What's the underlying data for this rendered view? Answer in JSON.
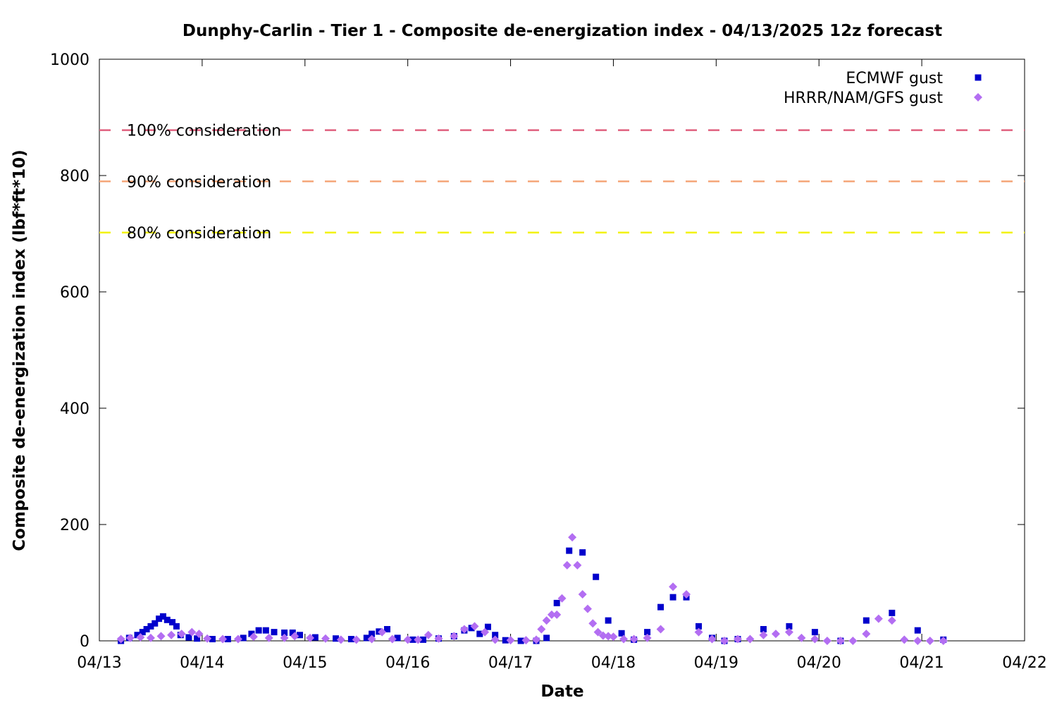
{
  "chart_data": {
    "type": "scatter",
    "title": "Dunphy-Carlin - Tier 1 - Composite de-energization index - 04/13/2025 12z forecast",
    "xlabel": "Date",
    "ylabel": "Composite de-energization index (lbf*ft*10)",
    "xlim": [
      0,
      9
    ],
    "xticks": [
      {
        "value": 0,
        "label": "04/13"
      },
      {
        "value": 1,
        "label": "04/14"
      },
      {
        "value": 2,
        "label": "04/15"
      },
      {
        "value": 3,
        "label": "04/16"
      },
      {
        "value": 4,
        "label": "04/17"
      },
      {
        "value": 5,
        "label": "04/18"
      },
      {
        "value": 6,
        "label": "04/19"
      },
      {
        "value": 7,
        "label": "04/20"
      },
      {
        "value": 8,
        "label": "04/21"
      },
      {
        "value": 9,
        "label": "04/22"
      }
    ],
    "ylim": [
      0,
      1000
    ],
    "yticks": [
      0,
      200,
      400,
      600,
      800,
      1000
    ],
    "legend": "upper right",
    "thresholds": [
      {
        "label": "100% consideration",
        "value": 878,
        "color": "#e0607e"
      },
      {
        "label": "90% consideration",
        "value": 790,
        "color": "#f5a77a"
      },
      {
        "label": "80% consideration",
        "value": 702,
        "color": "#f2f200"
      }
    ],
    "series": [
      {
        "name": "ECMWF gust",
        "color": "#0000cc",
        "marker": "square",
        "x": [
          0.21,
          0.29,
          0.37,
          0.42,
          0.46,
          0.5,
          0.54,
          0.58,
          0.62,
          0.66,
          0.71,
          0.75,
          0.79,
          0.87,
          0.95,
          1.1,
          1.25,
          1.4,
          1.48,
          1.55,
          1.62,
          1.7,
          1.8,
          1.88,
          1.95,
          2.1,
          2.3,
          2.45,
          2.6,
          2.65,
          2.72,
          2.8,
          2.9,
          3.05,
          3.15,
          3.3,
          3.45,
          3.55,
          3.62,
          3.7,
          3.78,
          3.85,
          3.95,
          4.1,
          4.25,
          4.35,
          4.45,
          4.57,
          4.7,
          4.83,
          4.95,
          5.08,
          5.2,
          5.33,
          5.46,
          5.58,
          5.71,
          5.83,
          5.96,
          6.08,
          6.21,
          6.46,
          6.71,
          6.96,
          7.21,
          7.46,
          7.71,
          7.96,
          8.21
        ],
        "values": [
          0,
          5,
          10,
          15,
          20,
          25,
          30,
          38,
          42,
          36,
          32,
          25,
          10,
          6,
          4,
          3,
          3,
          5,
          12,
          18,
          18,
          15,
          14,
          14,
          10,
          6,
          4,
          3,
          5,
          12,
          16,
          20,
          5,
          2,
          2,
          4,
          8,
          18,
          22,
          12,
          24,
          10,
          1,
          0,
          0,
          5,
          65,
          155,
          152,
          110,
          35,
          13,
          2,
          15,
          58,
          75,
          75,
          25,
          5,
          0,
          3,
          20,
          25,
          15,
          0,
          35,
          48,
          18,
          2
        ]
      },
      {
        "name": "HRRR/NAM/GFS gust",
        "color": "#b36ef2",
        "marker": "diamond",
        "x": [
          0.21,
          0.3,
          0.4,
          0.5,
          0.6,
          0.7,
          0.8,
          0.9,
          0.97,
          1.05,
          1.2,
          1.35,
          1.5,
          1.65,
          1.8,
          1.9,
          2.05,
          2.2,
          2.35,
          2.5,
          2.65,
          2.75,
          2.85,
          3.0,
          3.1,
          3.2,
          3.3,
          3.45,
          3.55,
          3.65,
          3.75,
          3.85,
          4.0,
          4.15,
          4.25,
          4.3,
          4.35,
          4.4,
          4.45,
          4.5,
          4.55,
          4.6,
          4.65,
          4.7,
          4.75,
          4.8,
          4.85,
          4.9,
          4.95,
          5.0,
          5.1,
          5.2,
          5.33,
          5.46,
          5.58,
          5.71,
          5.83,
          5.96,
          6.08,
          6.21,
          6.33,
          6.46,
          6.58,
          6.71,
          6.83,
          6.96,
          7.08,
          7.21,
          7.33,
          7.46,
          7.58,
          7.71,
          7.83,
          7.96,
          8.08,
          8.21
        ],
        "values": [
          3,
          5,
          6,
          5,
          8,
          10,
          12,
          15,
          12,
          4,
          3,
          3,
          7,
          5,
          5,
          8,
          5,
          4,
          2,
          2,
          3,
          15,
          3,
          2,
          2,
          10,
          4,
          8,
          20,
          25,
          15,
          2,
          1,
          1,
          2,
          20,
          35,
          45,
          45,
          73,
          130,
          178,
          130,
          80,
          55,
          30,
          15,
          9,
          8,
          7,
          3,
          3,
          5,
          20,
          93,
          80,
          15,
          3,
          0,
          3,
          3,
          10,
          12,
          15,
          5,
          3,
          0,
          0,
          0,
          12,
          38,
          35,
          2,
          0,
          0,
          0
        ]
      }
    ]
  }
}
